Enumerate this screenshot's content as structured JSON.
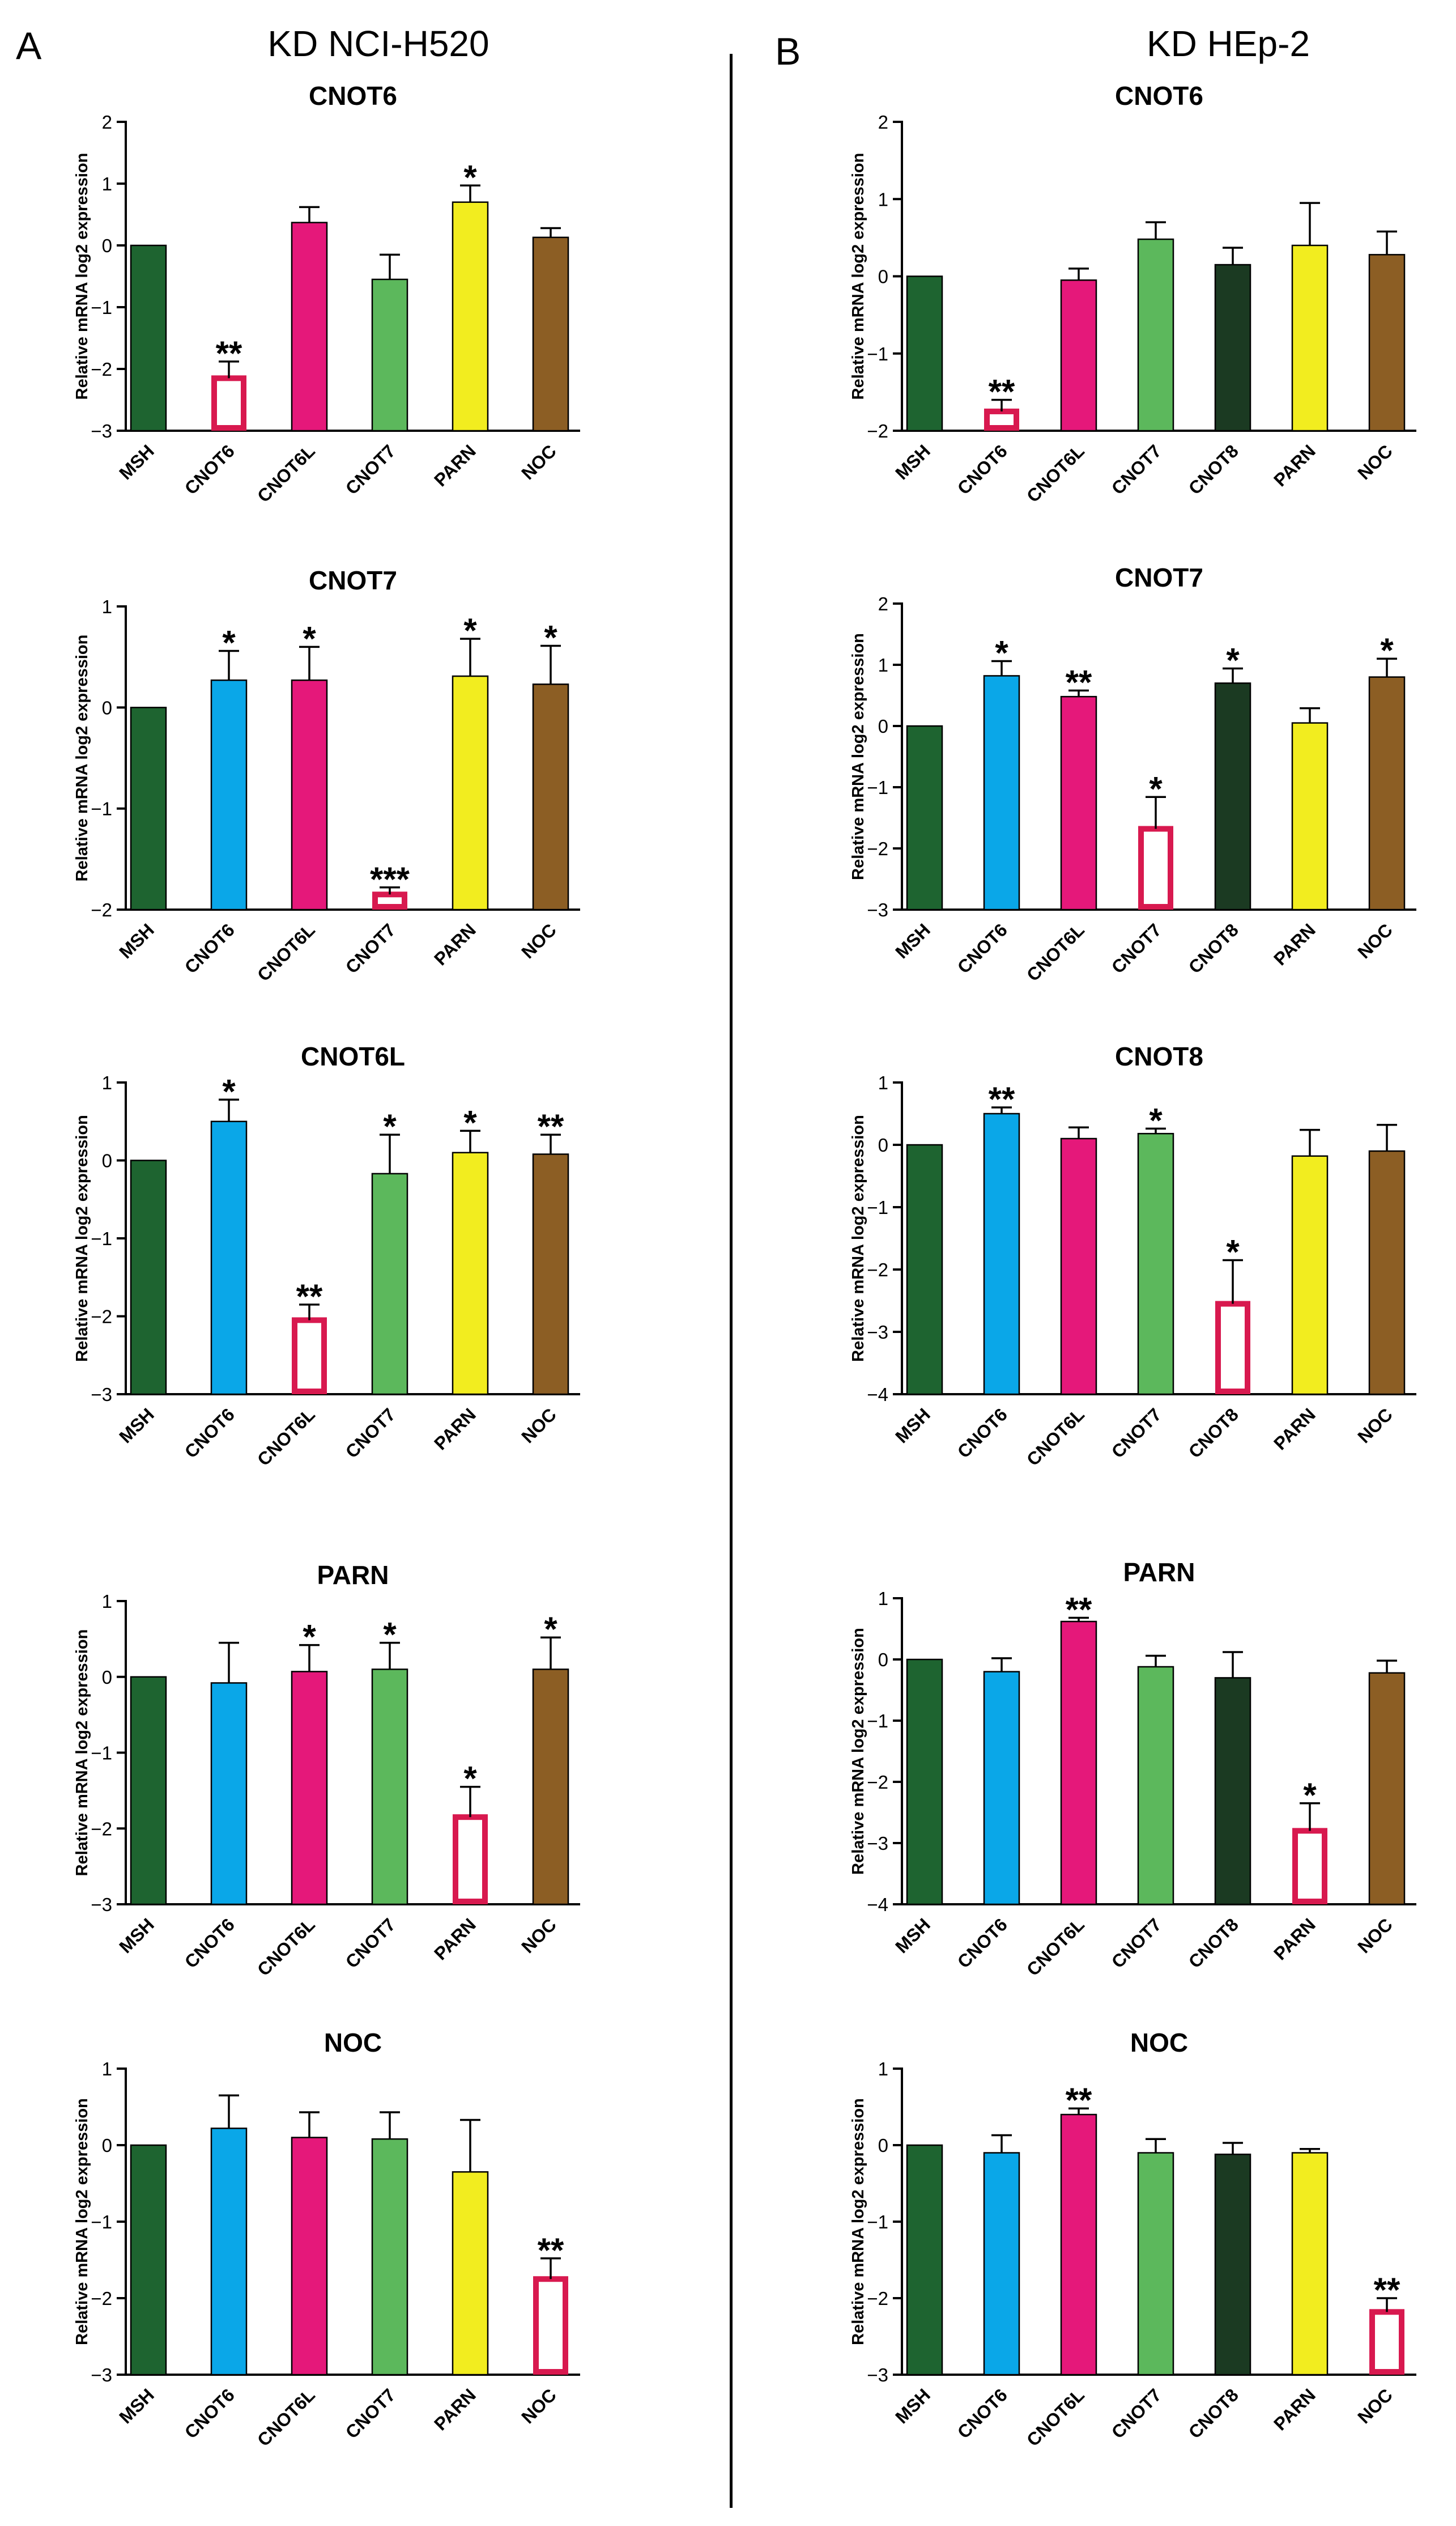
{
  "panels": {
    "A": {
      "letter": "A",
      "title": "KD NCI-H520"
    },
    "B": {
      "letter": "B",
      "title": "KD HEp-2"
    }
  },
  "colors": {
    "MSH": "#1e6430",
    "CNOT6": "#0aa7e8",
    "CNOT6L": "#e5187a",
    "CNOT7": "#5cb85c",
    "CNOT8": "#1b3a22",
    "PARN": "#f2ed1f",
    "NOC": "#8c5e24",
    "knockdown_outline": "#d8194f"
  },
  "chart_data": [
    {
      "panel": "A",
      "type": "bar",
      "title": "CNOT6",
      "ylabel": "Relative mRNA log2 expression",
      "ylim": [
        -3,
        2
      ],
      "yticks": [
        -3,
        -2,
        -1,
        0,
        1,
        2
      ],
      "categories": [
        "MSH",
        "CNOT6",
        "CNOT6L",
        "CNOT7",
        "PARN",
        "NOC"
      ],
      "values": [
        0,
        -2.15,
        0.37,
        -0.55,
        0.7,
        0.13
      ],
      "errors": [
        0,
        0.27,
        0.25,
        0.4,
        0.27,
        0.15
      ],
      "significance": [
        "",
        "**",
        "",
        "",
        "*",
        ""
      ],
      "knockdown": "CNOT6"
    },
    {
      "panel": "A",
      "type": "bar",
      "title": "CNOT7",
      "ylabel": "Relative mRNA log2 expression",
      "ylim": [
        -2,
        1
      ],
      "yticks": [
        -2,
        -1,
        0,
        1
      ],
      "categories": [
        "MSH",
        "CNOT6",
        "CNOT6L",
        "CNOT7",
        "PARN",
        "NOC"
      ],
      "values": [
        0,
        0.27,
        0.27,
        -1.85,
        0.31,
        0.23
      ],
      "errors": [
        0,
        0.29,
        0.33,
        0.07,
        0.37,
        0.38
      ],
      "significance": [
        "",
        "*",
        "*",
        "***",
        "*",
        "*"
      ],
      "knockdown": "CNOT7"
    },
    {
      "panel": "A",
      "type": "bar",
      "title": "CNOT6L",
      "ylabel": "Relative mRNA log2 expression",
      "ylim": [
        -3,
        1
      ],
      "yticks": [
        -3,
        -2,
        -1,
        0,
        1
      ],
      "categories": [
        "MSH",
        "CNOT6",
        "CNOT6L",
        "CNOT7",
        "PARN",
        "NOC"
      ],
      "values": [
        0,
        0.5,
        -2.05,
        -0.17,
        0.1,
        0.08
      ],
      "errors": [
        0,
        0.28,
        0.2,
        0.5,
        0.28,
        0.25
      ],
      "significance": [
        "",
        "*",
        "**",
        "*",
        "*",
        "**"
      ],
      "knockdown": "CNOT6L"
    },
    {
      "panel": "A",
      "type": "bar",
      "title": "PARN",
      "ylabel": "Relative mRNA log2 expression",
      "ylim": [
        -3,
        1
      ],
      "yticks": [
        -3,
        -2,
        -1,
        0,
        1
      ],
      "categories": [
        "MSH",
        "CNOT6",
        "CNOT6L",
        "CNOT7",
        "PARN",
        "NOC"
      ],
      "values": [
        0,
        -0.08,
        0.07,
        0.1,
        -1.85,
        0.1
      ],
      "errors": [
        0,
        0.53,
        0.35,
        0.35,
        0.4,
        0.42
      ],
      "significance": [
        "",
        "",
        "*",
        "*",
        "*",
        "*"
      ],
      "knockdown": "PARN"
    },
    {
      "panel": "A",
      "type": "bar",
      "title": "NOC",
      "ylabel": "Relative mRNA log2 expression",
      "ylim": [
        -3,
        1
      ],
      "yticks": [
        -3,
        -2,
        -1,
        0,
        1
      ],
      "categories": [
        "MSH",
        "CNOT6",
        "CNOT6L",
        "CNOT7",
        "PARN",
        "NOC"
      ],
      "values": [
        0,
        0.22,
        0.1,
        0.08,
        -0.35,
        -1.75
      ],
      "errors": [
        0,
        0.43,
        0.33,
        0.35,
        0.68,
        0.27
      ],
      "significance": [
        "",
        "",
        "",
        "",
        "",
        "**"
      ],
      "knockdown": "NOC"
    },
    {
      "panel": "B",
      "type": "bar",
      "title": "CNOT6",
      "ylabel": "Relative mRNA log2 expression",
      "ylim": [
        -2,
        2
      ],
      "yticks": [
        -2,
        -1,
        0,
        1,
        2
      ],
      "categories": [
        "MSH",
        "CNOT6",
        "CNOT6L",
        "CNOT7",
        "CNOT8",
        "PARN",
        "NOC"
      ],
      "values": [
        0,
        -1.75,
        -0.05,
        0.48,
        0.15,
        0.4,
        0.28
      ],
      "errors": [
        0,
        0.15,
        0.15,
        0.22,
        0.22,
        0.55,
        0.3
      ],
      "significance": [
        "",
        "**",
        "",
        "",
        "",
        "",
        ""
      ],
      "knockdown": "CNOT6"
    },
    {
      "panel": "B",
      "type": "bar",
      "title": "CNOT7",
      "ylabel": "Relative mRNA log2 expression",
      "ylim": [
        -3,
        2
      ],
      "yticks": [
        -3,
        -2,
        -1,
        0,
        1,
        2
      ],
      "categories": [
        "MSH",
        "CNOT6",
        "CNOT6L",
        "CNOT7",
        "CNOT8",
        "PARN",
        "NOC"
      ],
      "values": [
        0,
        0.82,
        0.48,
        -1.68,
        0.7,
        0.05,
        0.8
      ],
      "errors": [
        0,
        0.24,
        0.1,
        0.52,
        0.24,
        0.24,
        0.3
      ],
      "significance": [
        "",
        "*",
        "**",
        "*",
        "*",
        "",
        "*"
      ],
      "knockdown": "CNOT7"
    },
    {
      "panel": "B",
      "type": "bar",
      "title": "CNOT8",
      "ylabel": "Relative mRNA log2 expression",
      "ylim": [
        -4,
        1
      ],
      "yticks": [
        -4,
        -3,
        -2,
        -1,
        0,
        1
      ],
      "categories": [
        "MSH",
        "CNOT6",
        "CNOT6L",
        "CNOT7",
        "CNOT8",
        "PARN",
        "NOC"
      ],
      "values": [
        0,
        0.5,
        0.1,
        0.18,
        -2.55,
        -0.18,
        -0.1
      ],
      "errors": [
        0,
        0.1,
        0.18,
        0.08,
        0.7,
        0.42,
        0.42
      ],
      "significance": [
        "",
        "**",
        "",
        "*",
        "*",
        "",
        ""
      ],
      "knockdown": "CNOT8"
    },
    {
      "panel": "B",
      "type": "bar",
      "title": "PARN",
      "ylabel": "Relative mRNA log2 expression",
      "ylim": [
        -4,
        1
      ],
      "yticks": [
        -4,
        -3,
        -2,
        -1,
        0,
        1
      ],
      "categories": [
        "MSH",
        "CNOT6",
        "CNOT6L",
        "CNOT7",
        "CNOT8",
        "PARN",
        "NOC"
      ],
      "values": [
        0,
        -0.2,
        0.62,
        -0.12,
        -0.3,
        -2.8,
        -0.22
      ],
      "errors": [
        0,
        0.22,
        0.06,
        0.18,
        0.42,
        0.45,
        0.2
      ],
      "significance": [
        "",
        "",
        "**",
        "",
        "",
        "*",
        ""
      ],
      "knockdown": "PARN"
    },
    {
      "panel": "B",
      "type": "bar",
      "title": "NOC",
      "ylabel": "Relative mRNA log2 expression",
      "ylim": [
        -3,
        1
      ],
      "yticks": [
        -3,
        -2,
        -1,
        0,
        1
      ],
      "categories": [
        "MSH",
        "CNOT6",
        "CNOT6L",
        "CNOT7",
        "CNOT8",
        "PARN",
        "NOC"
      ],
      "values": [
        0,
        -0.1,
        0.4,
        -0.1,
        -0.12,
        -0.1,
        -2.18
      ],
      "errors": [
        0,
        0.23,
        0.08,
        0.18,
        0.15,
        0.05,
        0.18
      ],
      "significance": [
        "",
        "",
        "**",
        "",
        "",
        "",
        "**"
      ],
      "knockdown": "NOC"
    }
  ]
}
